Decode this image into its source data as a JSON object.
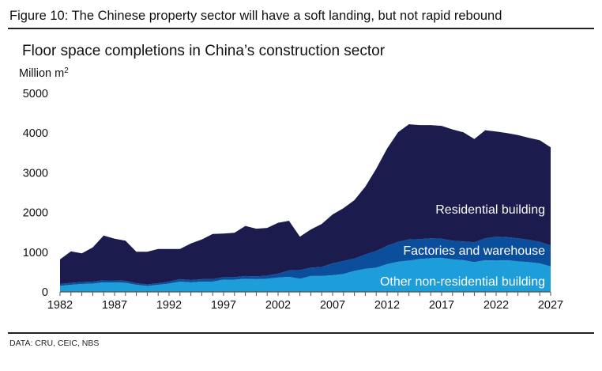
{
  "figure_title": "Figure 10: The Chinese property sector will have a soft landing, but not rapid rebound",
  "source": "DATA: CRU, CEIC, NBS",
  "chart_data": {
    "type": "area",
    "stacked": true,
    "title": "Floor space completions in China’s construction sector",
    "ylabel": "Million m",
    "ylabel_superscript": "2",
    "xlabel": "",
    "ylim": [
      0,
      5000
    ],
    "y_ticks": [
      0,
      1000,
      2000,
      3000,
      4000,
      5000
    ],
    "x_ticks": [
      1982,
      1987,
      1992,
      1997,
      2002,
      2007,
      2012,
      2017,
      2022,
      2027
    ],
    "grid": false,
    "x": [
      1982,
      1983,
      1984,
      1985,
      1986,
      1987,
      1988,
      1989,
      1990,
      1991,
      1992,
      1993,
      1994,
      1995,
      1996,
      1997,
      1998,
      1999,
      2000,
      2001,
      2002,
      2003,
      2004,
      2005,
      2006,
      2007,
      2008,
      2009,
      2010,
      2011,
      2012,
      2013,
      2014,
      2015,
      2016,
      2017,
      2018,
      2019,
      2020,
      2021,
      2022,
      2023,
      2024,
      2025,
      2026,
      2027
    ],
    "series": [
      {
        "name": "Other non-residential building",
        "color": "#1e9ddb",
        "values": [
          150,
          180,
          200,
          210,
          240,
          240,
          230,
          180,
          150,
          180,
          210,
          260,
          240,
          260,
          260,
          310,
          310,
          330,
          320,
          330,
          360,
          380,
          330,
          400,
          400,
          420,
          450,
          530,
          580,
          610,
          700,
          760,
          790,
          830,
          850,
          860,
          820,
          800,
          750,
          800,
          790,
          800,
          770,
          750,
          720,
          640
        ]
      },
      {
        "name": "Factories and warehouse",
        "color": "#0b4e9c",
        "values": [
          50,
          50,
          50,
          50,
          50,
          50,
          50,
          40,
          40,
          40,
          50,
          60,
          60,
          60,
          60,
          60,
          60,
          70,
          70,
          80,
          100,
          160,
          220,
          210,
          230,
          300,
          330,
          310,
          360,
          420,
          460,
          500,
          530,
          500,
          500,
          480,
          470,
          470,
          500,
          550,
          600,
          580,
          580,
          560,
          540,
          530
        ]
      },
      {
        "name": "Residential building",
        "color": "#1b1b4e",
        "values": [
          620,
          790,
          720,
          860,
          1130,
          1050,
          1010,
          790,
          820,
          860,
          820,
          760,
          920,
          1000,
          1140,
          1100,
          1120,
          1260,
          1200,
          1200,
          1280,
          1250,
          840,
          960,
          1080,
          1230,
          1330,
          1470,
          1710,
          2070,
          2450,
          2760,
          2900,
          2870,
          2850,
          2840,
          2800,
          2750,
          2600,
          2720,
          2650,
          2620,
          2600,
          2570,
          2560,
          2470
        ]
      }
    ],
    "annotations": [
      {
        "text": "Residential building"
      },
      {
        "text": "Factories and warehouse"
      },
      {
        "text": "Other non-residential building"
      }
    ]
  }
}
